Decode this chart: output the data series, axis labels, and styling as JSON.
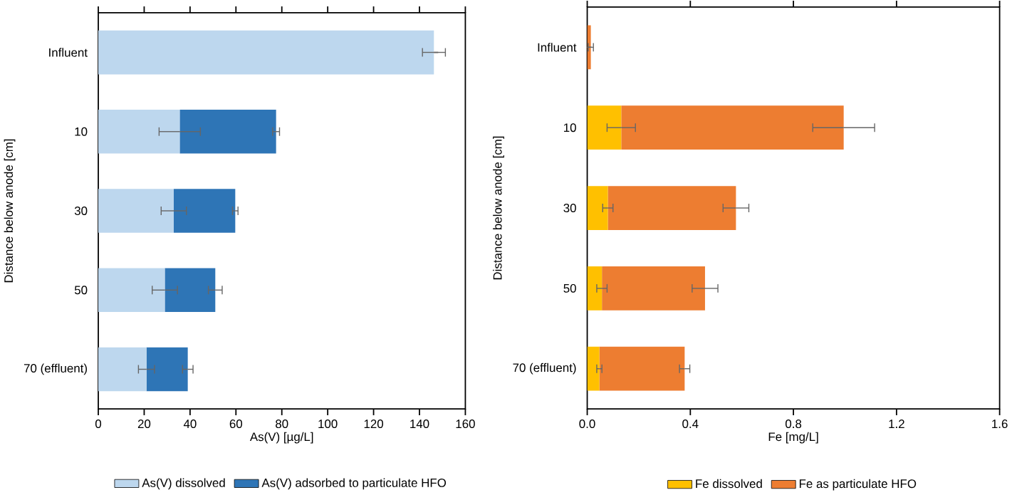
{
  "chart_data": [
    {
      "type": "bar",
      "orientation": "horizontal",
      "stacked": true,
      "xlabel": "As(V) [µg/L]",
      "ylabel": "Distance below anode [cm]",
      "categories": [
        "Influent",
        "10",
        "30",
        "50",
        "70 (effluent)"
      ],
      "xlim": [
        0,
        160
      ],
      "xticks": [
        0,
        20,
        40,
        60,
        80,
        100,
        120,
        140,
        160
      ],
      "legend": "bottom",
      "series": [
        {
          "name": "As(V) dissolved",
          "color": "#bdd7ee",
          "values": [
            146.3,
            35.5,
            32.9,
            29,
            21
          ],
          "errors": [
            5,
            9,
            5.5,
            5.5,
            3.5
          ]
        },
        {
          "name": "As(V) adsorbed to particulate HFO",
          "color": "#2e75b6",
          "values": [
            null,
            42,
            26.8,
            22,
            18
          ],
          "errors": [
            null,
            1.5,
            1.2,
            3,
            2.3
          ]
        }
      ]
    },
    {
      "type": "bar",
      "orientation": "horizontal",
      "stacked": true,
      "xlabel": "Fe [mg/L]",
      "ylabel": "Distance below anode [cm]",
      "categories": [
        "Influent",
        "10",
        "30",
        "50",
        "70 (effluent)"
      ],
      "xlim": [
        0,
        1.6
      ],
      "xticks": [
        {
          "value": 0,
          "label": "0.0"
        },
        0.4,
        0.8,
        1.2,
        1.6
      ],
      "legend": "bottom",
      "series": [
        {
          "name": "Fe dissolved",
          "color": "#ffc000",
          "values": [
            null,
            0.132,
            0.08,
            0.057,
            0.047
          ],
          "errors": [
            null,
            0.055,
            0.02,
            0.02,
            0.01
          ]
        },
        {
          "name": "Fe as particulate HFO",
          "color": "#ed7d31",
          "values": [
            0.014,
            0.863,
            0.497,
            0.4,
            0.331
          ],
          "errors": [
            0.01,
            0.12,
            0.05,
            0.05,
            0.02
          ]
        }
      ]
    }
  ]
}
